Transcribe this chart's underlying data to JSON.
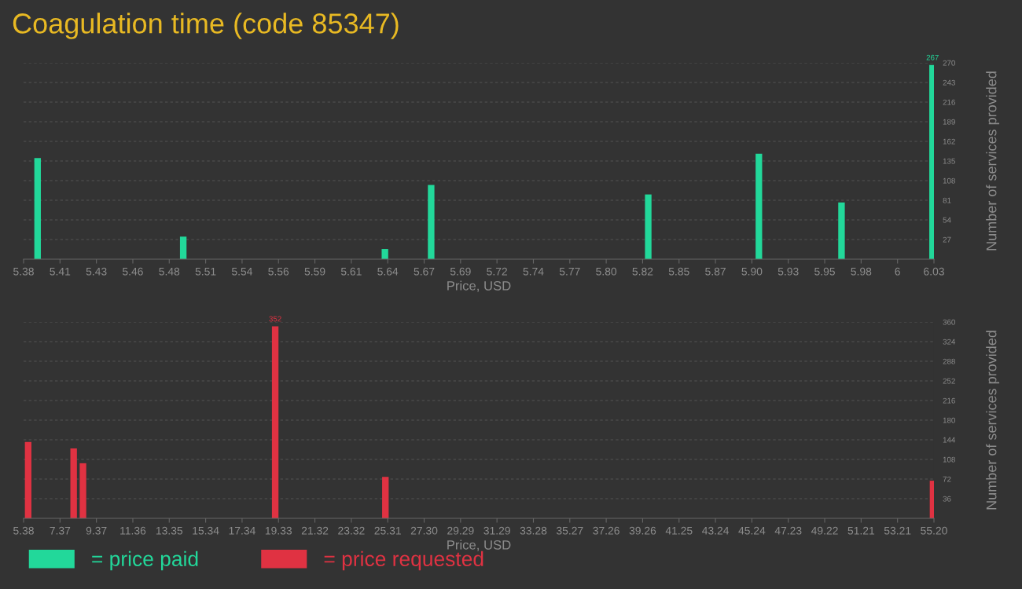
{
  "chart_data": [
    {
      "type": "bar",
      "title": "Coagulation time (code 85347)",
      "xlabel": "Price, USD",
      "ylabel": "Number of services provided",
      "x": [
        5.39,
        5.494,
        5.638,
        5.671,
        5.826,
        5.905,
        5.964,
        6.029
      ],
      "series": [
        {
          "name": "= price paid",
          "color": "#22d89a",
          "values": [
            139,
            31,
            14,
            102,
            89,
            145,
            78,
            267
          ],
          "value_labels": [
            null,
            null,
            null,
            null,
            null,
            null,
            null,
            "267"
          ]
        }
      ],
      "xlim": [
        5.38,
        6.03
      ],
      "xticks": [
        {
          "value": 5.38,
          "label": "5.38"
        },
        {
          "value": 5.406,
          "label": "5.41"
        },
        {
          "value": 5.432,
          "label": "5.43"
        },
        {
          "value": 5.458,
          "label": "5.46"
        },
        {
          "value": 5.484,
          "label": "5.48"
        },
        {
          "value": 5.51,
          "label": "5.51"
        },
        {
          "value": 5.536,
          "label": "5.54"
        },
        {
          "value": 5.562,
          "label": "5.56"
        },
        {
          "value": 5.588,
          "label": "5.59"
        },
        {
          "value": 5.614,
          "label": "5.61"
        },
        {
          "value": 5.64,
          "label": "5.64"
        },
        {
          "value": 5.666,
          "label": "5.67"
        },
        {
          "value": 5.692,
          "label": "5.69"
        },
        {
          "value": 5.718,
          "label": "5.72"
        },
        {
          "value": 5.744,
          "label": "5.74"
        },
        {
          "value": 5.77,
          "label": "5.77"
        },
        {
          "value": 5.796,
          "label": "5.80"
        },
        {
          "value": 5.822,
          "label": "5.82"
        },
        {
          "value": 5.848,
          "label": "5.85"
        },
        {
          "value": 5.874,
          "label": "5.87"
        },
        {
          "value": 5.9,
          "label": "5.90"
        },
        {
          "value": 5.926,
          "label": "5.93"
        },
        {
          "value": 5.952,
          "label": "5.95"
        },
        {
          "value": 5.978,
          "label": "5.98"
        },
        {
          "value": 6.004,
          "label": "6"
        },
        {
          "value": 6.03,
          "label": "6.03"
        }
      ],
      "ylim": [
        0,
        270
      ],
      "yticks": [
        27,
        54,
        81,
        108,
        135,
        162,
        189,
        216,
        243,
        270
      ],
      "grid": "y",
      "legend": "bottom left"
    },
    {
      "type": "bar",
      "xlabel": "Price, USD",
      "ylabel": "Number of services provided",
      "x": [
        5.63,
        8.12,
        8.63,
        19.15,
        25.18,
        55.15
      ],
      "series": [
        {
          "name": "= price requested",
          "color": "#e03242",
          "values": [
            140,
            128,
            101,
            352,
            76,
            69
          ],
          "value_labels": [
            null,
            null,
            null,
            "352",
            null,
            null
          ]
        }
      ],
      "xlim": [
        5.38,
        55.2
      ],
      "xticks": [
        {
          "value": 5.38,
          "label": "5.38"
        },
        {
          "value": 7.3728,
          "label": "7.37"
        },
        {
          "value": 9.3656,
          "label": "9.37"
        },
        {
          "value": 11.3584,
          "label": "11.36"
        },
        {
          "value": 13.3512,
          "label": "13.35"
        },
        {
          "value": 15.344,
          "label": "15.34"
        },
        {
          "value": 17.3368,
          "label": "17.34"
        },
        {
          "value": 19.3296,
          "label": "19.33"
        },
        {
          "value": 21.3224,
          "label": "21.32"
        },
        {
          "value": 23.3152,
          "label": "23.32"
        },
        {
          "value": 25.308,
          "label": "25.31"
        },
        {
          "value": 27.3008,
          "label": "27.30"
        },
        {
          "value": 29.2936,
          "label": "29.29"
        },
        {
          "value": 31.2864,
          "label": "31.29"
        },
        {
          "value": 33.2792,
          "label": "33.28"
        },
        {
          "value": 35.272,
          "label": "35.27"
        },
        {
          "value": 37.2648,
          "label": "37.26"
        },
        {
          "value": 39.2576,
          "label": "39.26"
        },
        {
          "value": 41.2504,
          "label": "41.25"
        },
        {
          "value": 43.2432,
          "label": "43.24"
        },
        {
          "value": 45.236,
          "label": "45.24"
        },
        {
          "value": 47.2288,
          "label": "47.23"
        },
        {
          "value": 49.2216,
          "label": "49.22"
        },
        {
          "value": 51.2144,
          "label": "51.21"
        },
        {
          "value": 53.2072,
          "label": "53.21"
        },
        {
          "value": 55.2,
          "label": "55.20"
        }
      ],
      "ylim": [
        0,
        360
      ],
      "yticks": [
        36,
        72,
        108,
        144,
        180,
        216,
        252,
        288,
        324,
        360
      ],
      "grid": "y",
      "legend": "bottom left"
    }
  ]
}
